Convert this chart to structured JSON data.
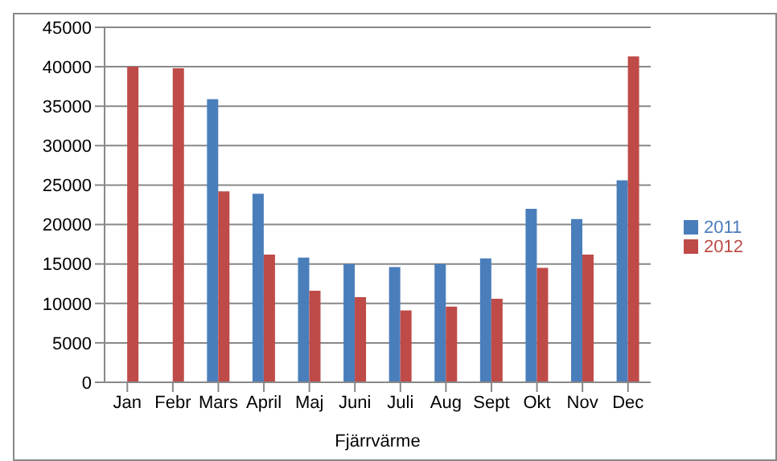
{
  "chart_data": {
    "type": "bar",
    "xlabel": "Fjärrvärme",
    "categories": [
      "Jan",
      "Febr",
      "Mars",
      "April",
      "Maj",
      "Juni",
      "Juli",
      "Aug",
      "Sept",
      "Okt",
      "Nov",
      "Dec"
    ],
    "series": [
      {
        "name": "2011",
        "color": "#4a7ebb",
        "values": [
          null,
          null,
          35900,
          23900,
          15800,
          15000,
          14600,
          15000,
          15700,
          22000,
          20700,
          25600
        ]
      },
      {
        "name": "2012",
        "color": "#be4b48",
        "values": [
          40000,
          39800,
          24200,
          16200,
          11600,
          10800,
          9100,
          9600,
          10600,
          14500,
          16200,
          41300
        ]
      }
    ],
    "ylim": [
      0,
      45000
    ],
    "yticks": [
      0,
      5000,
      10000,
      15000,
      20000,
      25000,
      30000,
      35000,
      40000,
      45000
    ],
    "grid": "y",
    "legend": "right"
  }
}
